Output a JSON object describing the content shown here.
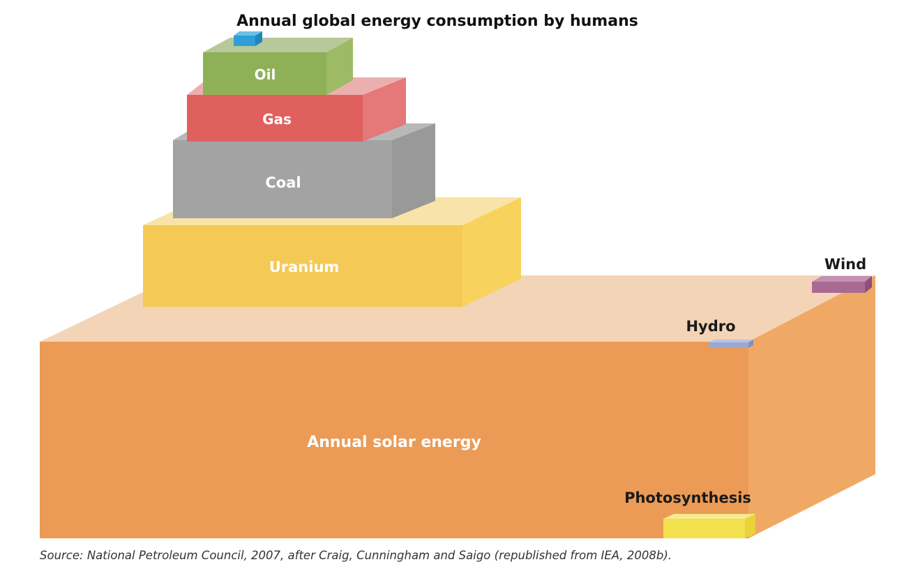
{
  "title": "Annual global energy consumption by humans",
  "source": "Source: National Petroleum Council, 2007, after Craig, Cunningham and Saigo (republished from IEA, 2008b).",
  "blocks": {
    "solar": {
      "label": "Annual solar energy",
      "front": "#EB9B55",
      "top": "#F3D4B7",
      "side": "#F0A964"
    },
    "uranium": {
      "label": "Uranium",
      "front": "#F5C955",
      "top": "#F8E4A8",
      "side": "#F7D35E"
    },
    "coal": {
      "label": "Coal",
      "front": "#A3A3A3",
      "top": "#B8B8B8",
      "side": "#999999"
    },
    "gas": {
      "label": "Gas",
      "front": "#E0605E",
      "top": "#EBB0AE",
      "side": "#E57878"
    },
    "oil": {
      "label": "Oil",
      "front": "#8EB158",
      "top": "#B7C89A",
      "side": "#9DBA64"
    },
    "consumption": {
      "front": "#2E9FD6",
      "top": "#6BC0E8",
      "side": "#1F86BC"
    },
    "wind": {
      "label": "Wind",
      "front": "#A86A93",
      "top": "#C391B3",
      "side": "#8E5079"
    },
    "hydro": {
      "label": "Hydro",
      "front": "#9BA8D2",
      "top": "#B9C3E2",
      "side": "#8490BE"
    },
    "photosynthesis": {
      "label": "Photosynthesis",
      "front": "#F2E04C",
      "top": "#F6EC8E",
      "side": "#E8D43A"
    }
  }
}
